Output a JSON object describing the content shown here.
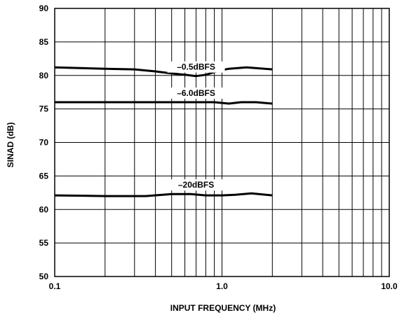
{
  "chart_data": {
    "type": "line",
    "xscale": "log",
    "xlim": [
      0.1,
      10.0
    ],
    "ylim": [
      50,
      90
    ],
    "grid": true,
    "xlabel": "INPUT FREQUENCY (MHz)",
    "ylabel": "SINAD (dB)",
    "x_tick_labels": [
      "0.1",
      "1.0",
      "10.0"
    ],
    "y_tick_labels": [
      "50",
      "55",
      "60",
      "65",
      "70",
      "75",
      "80",
      "85",
      "90"
    ],
    "series": [
      {
        "name": "–0.5dBFS",
        "x": [
          0.1,
          0.2,
          0.3,
          0.4,
          0.5,
          0.6,
          0.7,
          0.8,
          0.9,
          1.0,
          1.1,
          1.4,
          2.0
        ],
        "y": [
          81.2,
          81.0,
          80.9,
          80.6,
          80.3,
          80.1,
          79.9,
          80.1,
          80.5,
          80.8,
          81.0,
          81.2,
          80.9
        ]
      },
      {
        "name": "–6.0dBFS",
        "x": [
          0.1,
          0.3,
          0.5,
          0.7,
          0.9,
          1.1,
          1.3,
          1.6,
          2.0
        ],
        "y": [
          76.0,
          76.0,
          76.0,
          76.0,
          76.0,
          75.8,
          76.0,
          76.0,
          75.8
        ]
      },
      {
        "name": "–20dBFS",
        "x": [
          0.1,
          0.2,
          0.35,
          0.5,
          0.65,
          0.8,
          1.0,
          1.2,
          1.5,
          2.0
        ],
        "y": [
          62.1,
          62.0,
          62.0,
          62.3,
          62.3,
          62.1,
          62.1,
          62.2,
          62.4,
          62.1
        ]
      }
    ]
  }
}
